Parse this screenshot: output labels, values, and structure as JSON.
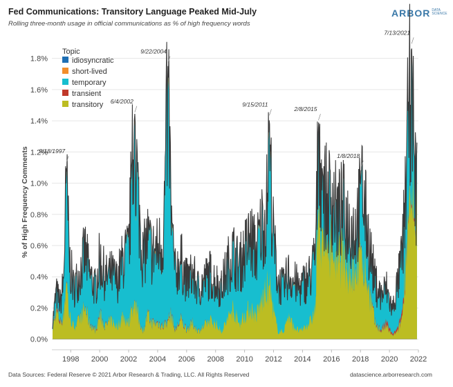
{
  "header": {
    "title": "Fed Communications: Transitory Language Peaked Mid-July",
    "subtitle": "Rolling three-month usage in official communications as % of high frequency words",
    "logo_main": "ARBOR",
    "logo_sub_1": "DATA",
    "logo_sub_2": "SCIENCE"
  },
  "footer": {
    "source": "Data Sources: Federal Reserve © 2021 Arbor Research & Trading, LLC. All Rights Reserved",
    "website": "datascience.arborresearch.com"
  },
  "chart_data": {
    "type": "area",
    "stacked": true,
    "title": "Fed Communications: Transitory Language Peaked Mid-July",
    "subtitle": "Rolling three-month usage in official communications as % of high frequency words",
    "xlabel": "",
    "ylabel": "% of High Frequency Comments",
    "xlim": [
      1996.7,
      2022.0
    ],
    "ylim": [
      -0.05,
      1.9
    ],
    "x_ticks": [
      "1998",
      "2000",
      "2002",
      "2004",
      "2006",
      "2008",
      "2010",
      "2012",
      "2014",
      "2016",
      "2018",
      "2020",
      "2022"
    ],
    "y_ticks": [
      "0.0%",
      "0.2%",
      "0.4%",
      "0.6%",
      "0.8%",
      "1.0%",
      "1.2%",
      "1.4%",
      "1.6%",
      "1.8%"
    ],
    "grid": true,
    "legend": {
      "title": "Topic",
      "placement": "top-left",
      "items": [
        {
          "name": "idiosyncratic",
          "color": "#1f6fb4"
        },
        {
          "name": "short-lived",
          "color": "#f28e2b"
        },
        {
          "name": "temporary",
          "color": "#17becf"
        },
        {
          "name": "transient",
          "color": "#c0392b"
        },
        {
          "name": "transitory",
          "color": "#bcbd22"
        }
      ]
    },
    "series_colors": {
      "transitory": "#bcbd22",
      "transient": "#c0392b",
      "temporary": "#17becf",
      "short-lived": "#f28e2b",
      "idiosyncratic": "#1f6fb4",
      "total_outline": "#3a3a3a"
    },
    "total_series": [
      [
        1996.75,
        0.12
      ],
      [
        1997.0,
        0.32
      ],
      [
        1997.3,
        0.25
      ],
      [
        1997.5,
        0.4
      ],
      [
        1997.71,
        1.13
      ],
      [
        1997.9,
        0.55
      ],
      [
        1998.2,
        0.35
      ],
      [
        1998.6,
        0.45
      ],
      [
        1999.0,
        0.6
      ],
      [
        1999.3,
        0.45
      ],
      [
        1999.7,
        0.35
      ],
      [
        2000.0,
        0.55
      ],
      [
        2000.4,
        0.42
      ],
      [
        2000.8,
        0.45
      ],
      [
        2001.2,
        0.4
      ],
      [
        2001.6,
        0.55
      ],
      [
        2002.0,
        0.6
      ],
      [
        2002.2,
        1.1
      ],
      [
        2002.42,
        1.45
      ],
      [
        2002.7,
        0.9
      ],
      [
        2003.0,
        0.55
      ],
      [
        2003.3,
        0.7
      ],
      [
        2003.6,
        0.6
      ],
      [
        2004.0,
        0.62
      ],
      [
        2004.4,
        0.7
      ],
      [
        2004.72,
        1.77
      ],
      [
        2004.95,
        0.8
      ],
      [
        2005.2,
        0.45
      ],
      [
        2005.6,
        0.55
      ],
      [
        2006.0,
        0.4
      ],
      [
        2006.4,
        0.45
      ],
      [
        2006.8,
        0.35
      ],
      [
        2007.2,
        0.4
      ],
      [
        2007.6,
        0.45
      ],
      [
        2008.0,
        0.4
      ],
      [
        2008.4,
        0.35
      ],
      [
        2008.8,
        0.5
      ],
      [
        2009.2,
        0.6
      ],
      [
        2009.6,
        0.5
      ],
      [
        2010.0,
        0.6
      ],
      [
        2010.4,
        0.7
      ],
      [
        2010.8,
        0.6
      ],
      [
        2011.2,
        0.8
      ],
      [
        2011.5,
        0.85
      ],
      [
        2011.71,
        1.43
      ],
      [
        2011.95,
        0.75
      ],
      [
        2012.3,
        0.4
      ],
      [
        2012.7,
        0.35
      ],
      [
        2013.0,
        0.45
      ],
      [
        2013.4,
        0.4
      ],
      [
        2013.8,
        0.35
      ],
      [
        2014.2,
        0.4
      ],
      [
        2014.6,
        0.45
      ],
      [
        2014.9,
        0.6
      ],
      [
        2015.1,
        1.4
      ],
      [
        2015.4,
        1.05
      ],
      [
        2015.7,
        0.95
      ],
      [
        2016.0,
        1.0
      ],
      [
        2016.4,
        0.85
      ],
      [
        2016.8,
        0.9
      ],
      [
        2017.2,
        0.8
      ],
      [
        2017.6,
        0.75
      ],
      [
        2018.0,
        0.95
      ],
      [
        2018.05,
        1.1
      ],
      [
        2018.3,
        0.9
      ],
      [
        2018.6,
        0.65
      ],
      [
        2019.0,
        0.4
      ],
      [
        2019.4,
        0.3
      ],
      [
        2019.8,
        0.35
      ],
      [
        2020.2,
        0.2
      ],
      [
        2020.6,
        0.4
      ],
      [
        2020.9,
        0.6
      ],
      [
        2021.1,
        1.0
      ],
      [
        2021.3,
        1.5
      ],
      [
        2021.53,
        1.89
      ],
      [
        2021.7,
        1.2
      ],
      [
        2021.9,
        1.0
      ]
    ],
    "transitory_series": [
      [
        1996.75,
        0.06
      ],
      [
        1997.0,
        0.18
      ],
      [
        1997.3,
        0.1
      ],
      [
        1997.5,
        0.15
      ],
      [
        1997.71,
        0.38
      ],
      [
        1997.9,
        0.15
      ],
      [
        1998.2,
        0.08
      ],
      [
        1998.6,
        0.12
      ],
      [
        1999.0,
        0.2
      ],
      [
        1999.3,
        0.1
      ],
      [
        1999.7,
        0.05
      ],
      [
        2000.0,
        0.15
      ],
      [
        2000.4,
        0.08
      ],
      [
        2000.8,
        0.12
      ],
      [
        2001.2,
        0.08
      ],
      [
        2001.6,
        0.15
      ],
      [
        2002.0,
        0.1
      ],
      [
        2002.2,
        0.2
      ],
      [
        2002.42,
        0.25
      ],
      [
        2002.7,
        0.12
      ],
      [
        2003.0,
        0.05
      ],
      [
        2003.3,
        0.15
      ],
      [
        2003.6,
        0.1
      ],
      [
        2004.0,
        0.1
      ],
      [
        2004.4,
        0.08
      ],
      [
        2004.72,
        0.12
      ],
      [
        2004.95,
        0.15
      ],
      [
        2005.2,
        0.05
      ],
      [
        2005.6,
        0.12
      ],
      [
        2006.0,
        0.06
      ],
      [
        2006.4,
        0.1
      ],
      [
        2006.8,
        0.05
      ],
      [
        2007.2,
        0.08
      ],
      [
        2007.6,
        0.12
      ],
      [
        2008.0,
        0.1
      ],
      [
        2008.4,
        0.05
      ],
      [
        2008.8,
        0.12
      ],
      [
        2009.2,
        0.2
      ],
      [
        2009.6,
        0.1
      ],
      [
        2010.0,
        0.15
      ],
      [
        2010.4,
        0.2
      ],
      [
        2010.8,
        0.15
      ],
      [
        2011.2,
        0.25
      ],
      [
        2011.5,
        0.3
      ],
      [
        2011.71,
        0.35
      ],
      [
        2011.95,
        0.2
      ],
      [
        2012.3,
        0.05
      ],
      [
        2012.7,
        0.05
      ],
      [
        2013.0,
        0.15
      ],
      [
        2013.4,
        0.08
      ],
      [
        2013.8,
        0.05
      ],
      [
        2014.2,
        0.08
      ],
      [
        2014.6,
        0.12
      ],
      [
        2014.9,
        0.2
      ],
      [
        2015.1,
        0.85
      ],
      [
        2015.4,
        0.7
      ],
      [
        2015.7,
        0.6
      ],
      [
        2016.0,
        0.65
      ],
      [
        2016.4,
        0.5
      ],
      [
        2016.8,
        0.55
      ],
      [
        2017.2,
        0.45
      ],
      [
        2017.6,
        0.4
      ],
      [
        2018.0,
        0.55
      ],
      [
        2018.05,
        0.6
      ],
      [
        2018.3,
        0.45
      ],
      [
        2018.6,
        0.3
      ],
      [
        2019.0,
        0.1
      ],
      [
        2019.4,
        0.05
      ],
      [
        2019.8,
        0.08
      ],
      [
        2020.2,
        0.02
      ],
      [
        2020.6,
        0.05
      ],
      [
        2020.9,
        0.15
      ],
      [
        2021.1,
        0.5
      ],
      [
        2021.3,
        0.75
      ],
      [
        2021.53,
        0.85
      ],
      [
        2021.7,
        0.75
      ],
      [
        2021.9,
        0.8
      ]
    ],
    "transient_series": [
      [
        1996.75,
        0.0
      ],
      [
        1997.0,
        0.02
      ],
      [
        1997.5,
        0.01
      ],
      [
        1998.0,
        0.0
      ],
      [
        2000.0,
        0.01
      ],
      [
        2001.0,
        0.0
      ],
      [
        2005.0,
        0.01
      ],
      [
        2008.0,
        0.0
      ],
      [
        2014.0,
        0.0
      ],
      [
        2019.4,
        0.01
      ],
      [
        2019.8,
        0.03
      ],
      [
        2020.2,
        0.01
      ],
      [
        2020.6,
        0.02
      ],
      [
        2020.9,
        0.04
      ],
      [
        2021.1,
        0.03
      ],
      [
        2021.3,
        0.02
      ],
      [
        2021.53,
        0.02
      ],
      [
        2021.9,
        0.02
      ]
    ],
    "annotations": [
      {
        "label": "9/18/1997",
        "x": 1997.71,
        "y": 1.13
      },
      {
        "label": "6/4/2002",
        "x": 2002.42,
        "y": 1.45
      },
      {
        "label": "9/22/2004",
        "x": 2004.72,
        "y": 1.77
      },
      {
        "label": "9/15/2011",
        "x": 2011.71,
        "y": 1.43
      },
      {
        "label": "2/8/2015",
        "x": 2015.1,
        "y": 1.4
      },
      {
        "label": "1/8/2018",
        "x": 2018.05,
        "y": 1.1
      },
      {
        "label": "7/13/2021",
        "x": 2021.53,
        "y": 1.89
      }
    ]
  }
}
